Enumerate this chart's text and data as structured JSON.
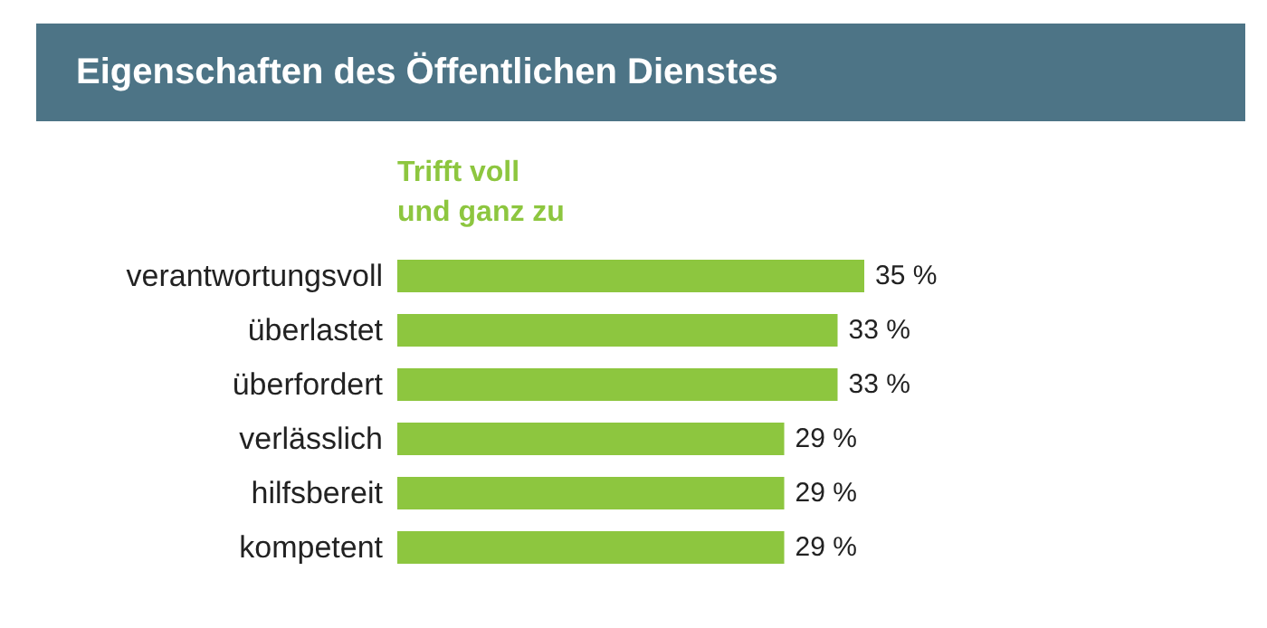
{
  "chart_data": {
    "type": "bar",
    "orientation": "horizontal",
    "title": "Eigenschaften des Öffentlichen Dienstes",
    "categories": [
      "verantwortungsvoll",
      "überlastet",
      "überfordert",
      "verlässlich",
      "hilfsbereit",
      "kompetent"
    ],
    "series": [
      {
        "name": "Trifft voll\nund ganz zu",
        "color": "#8dc63f",
        "values": [
          35,
          33,
          33,
          29,
          29,
          29
        ],
        "value_labels": [
          "35 %",
          "33 %",
          "33 %",
          "29 %",
          "29 %",
          "29 %"
        ]
      }
    ],
    "legend": "top left",
    "grid": false,
    "tick_labels": "y"
  }
}
